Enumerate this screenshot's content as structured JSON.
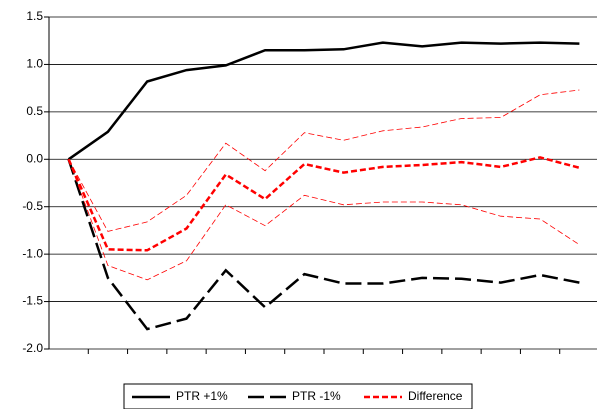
{
  "chart_data": {
    "type": "line",
    "categories": [
      null,
      null,
      null,
      null,
      null,
      null,
      null,
      null,
      null,
      null,
      null,
      null,
      null,
      null
    ],
    "series": [
      {
        "name": "PTR +1%",
        "color": "#000000",
        "style": "solid",
        "width": 2.5,
        "values": [
          0,
          0.29,
          0.82,
          0.94,
          0.99,
          1.15,
          1.15,
          1.16,
          1.23,
          1.19,
          1.23,
          1.22,
          1.23,
          1.22
        ]
      },
      {
        "name": "PTR -1%",
        "color": "#000000",
        "style": "longdash",
        "width": 2.5,
        "values": [
          0,
          -1.25,
          -1.79,
          -1.68,
          -1.17,
          -1.56,
          -1.21,
          -1.31,
          -1.31,
          -1.25,
          -1.26,
          -1.3,
          -1.22,
          -1.3
        ]
      },
      {
        "name": "Difference",
        "color": "#ff0000",
        "style": "dash",
        "width": 2.5,
        "values": [
          0,
          -0.95,
          -0.96,
          -0.73,
          -0.16,
          -0.42,
          -0.05,
          -0.14,
          -0.08,
          -0.06,
          -0.03,
          -0.08,
          0.02,
          -0.09
        ]
      },
      {
        "color": "#ff0000",
        "style": "dash",
        "width": 0.8,
        "values": [
          0,
          -0.76,
          -0.66,
          -0.38,
          0.17,
          -0.12,
          0.28,
          0.2,
          0.3,
          0.34,
          0.43,
          0.44,
          0.68,
          0.73
        ]
      },
      {
        "color": "#ff0000",
        "style": "dash",
        "width": 0.8,
        "values": [
          0,
          -1.12,
          -1.27,
          -1.07,
          -0.48,
          -0.7,
          -0.38,
          -0.48,
          -0.45,
          -0.45,
          -0.48,
          -0.6,
          -0.63,
          -0.9
        ]
      }
    ],
    "ylim": [
      -2,
      1.5
    ],
    "yticks": [
      1.5,
      {
        "value": 1,
        "label": "1.0"
      },
      0.5,
      {
        "value": 0,
        "label": "0.0"
      },
      -0.5,
      {
        "value": -1,
        "label": "-1.0"
      },
      -1.5,
      {
        "value": -2,
        "label": "-2.0"
      }
    ],
    "grid": true,
    "legend": "bottom"
  }
}
